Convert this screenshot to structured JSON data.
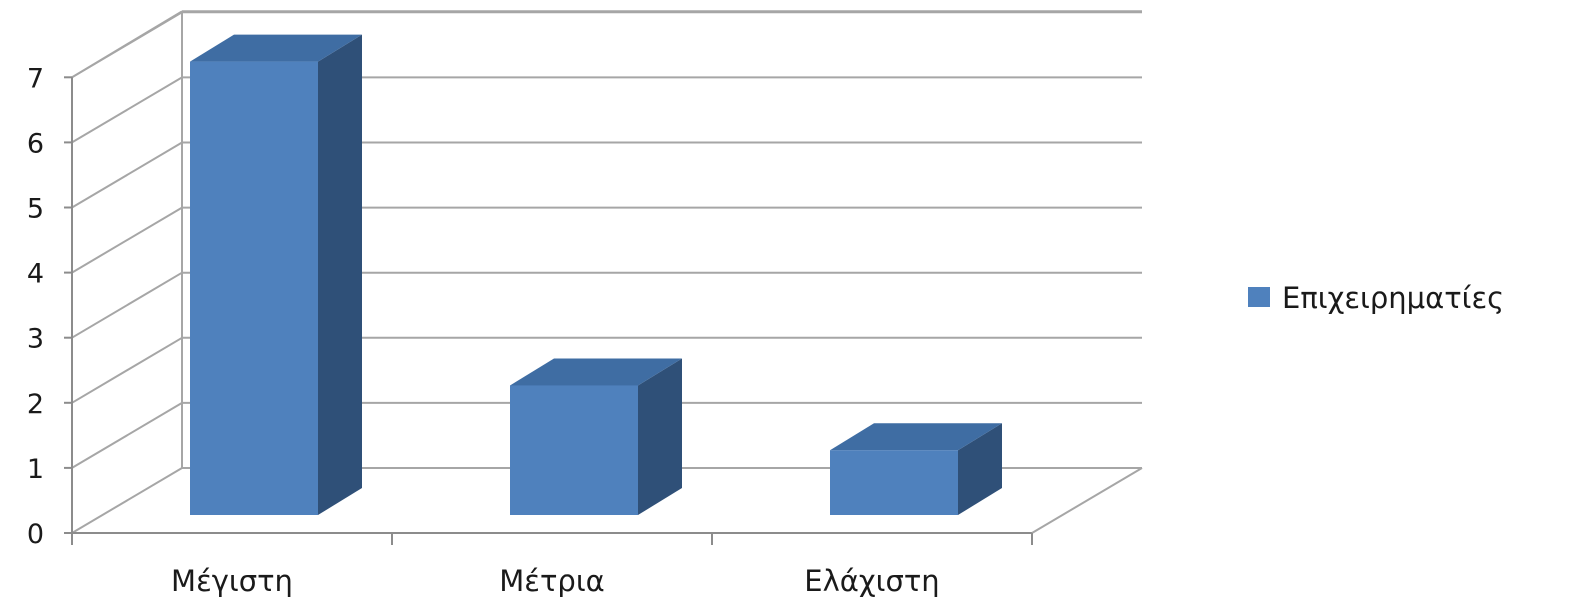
{
  "chart_data": {
    "type": "bar",
    "style": "3d-column",
    "categories": [
      "Μέγιστη",
      "Μέτρια",
      "Ελάχιστη"
    ],
    "series": [
      {
        "name": "Επιχειρηματίες",
        "values": [
          7,
          2,
          1
        ],
        "color": "#4f81bd"
      }
    ],
    "y_ticks": [
      "0",
      "1",
      "2",
      "3",
      "4",
      "5",
      "6",
      "7"
    ],
    "ylim": [
      0,
      7
    ],
    "grid": true,
    "legend": "right",
    "colors": {
      "bar_front": "#4f81bd",
      "bar_top": "#3f6da3",
      "bar_side": "#2f5078",
      "grid": "#a6a6a6",
      "axis": "#8c8c8c"
    }
  }
}
